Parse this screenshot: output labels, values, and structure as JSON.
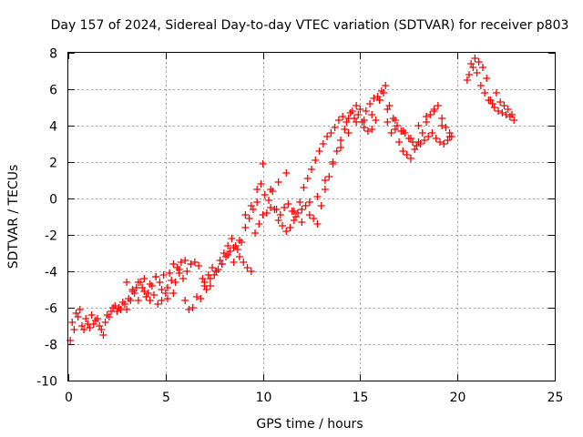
{
  "chart_data": {
    "type": "scatter",
    "title": "Day 157 of 2024, Sidereal Day-to-day VTEC variation (SDTVAR) for receiver p803",
    "xlabel": "GPS time / hours",
    "ylabel": "SDTVAR / TECUs",
    "xlim": [
      0,
      25
    ],
    "ylim": [
      -10,
      8
    ],
    "xticks": [
      "0",
      "5",
      "10",
      "15",
      "20",
      "25"
    ],
    "yticks": [
      "-10",
      "-8",
      "-6",
      "-4",
      "-2",
      "0",
      "2",
      "4",
      "6",
      "8"
    ],
    "grid": true,
    "marker": "+",
    "color": "#ff0000",
    "series": [
      {
        "x": [
          0.1,
          0.3,
          0.5,
          0.7,
          0.9,
          1.1,
          1.3,
          1.5,
          1.7,
          1.9,
          2.1,
          2.3,
          2.5,
          2.7,
          2.9,
          3.1,
          3.3,
          3.5,
          3.7,
          3.9,
          4.1,
          4.3,
          4.5,
          4.7,
          4.9,
          5.1,
          5.3,
          5.5,
          5.7,
          5.9,
          6.1,
          6.3,
          6.5,
          6.7,
          6.9,
          7.1,
          7.3,
          7.5,
          7.7,
          7.9,
          8.1,
          8.3,
          8.5,
          8.7,
          8.9,
          9.1,
          9.3,
          9.5,
          9.7,
          9.9,
          10.1,
          10.3,
          10.5,
          10.7,
          10.9,
          11.1,
          11.3,
          11.5,
          11.7,
          11.9,
          12.1,
          12.3,
          12.5,
          12.7,
          12.9,
          13.1,
          13.3,
          13.5,
          13.7,
          13.9,
          14.1,
          14.3,
          14.5,
          14.7,
          14.9,
          15.1,
          15.3,
          15.5,
          15.7,
          15.9,
          16.1,
          16.3,
          16.5,
          16.7,
          16.9,
          17.1,
          17.3,
          17.5,
          17.7,
          17.9,
          18.1,
          18.3,
          18.5,
          18.7,
          18.9,
          19.1,
          19.3,
          19.5,
          19.7,
          20.5,
          20.7,
          20.9,
          21.1,
          21.3,
          21.5,
          21.7,
          21.9,
          22.1,
          22.3,
          22.5,
          22.7,
          22.9
        ],
        "y": [
          -7.8,
          -7.2,
          -6.5,
          -7.0,
          -6.6,
          -7.1,
          -6.9,
          -6.6,
          -7.2,
          -6.8,
          -6.5,
          -6.0,
          -6.2,
          -6.1,
          -5.8,
          -5.5,
          -5.0,
          -4.9,
          -4.6,
          -4.4,
          -5.2,
          -4.8,
          -4.3,
          -4.6,
          -4.2,
          -4.9,
          -4.5,
          -4.6,
          -4.1,
          -4.4,
          -4.0,
          -3.6,
          -3.5,
          -3.7,
          -4.4,
          -5.0,
          -4.8,
          -4.2,
          -3.9,
          -3.6,
          -3.2,
          -2.9,
          -3.5,
          -2.8,
          -2.4,
          -1.6,
          -1.1,
          -0.6,
          -0.2,
          0.8,
          0.2,
          -0.1,
          0.4,
          -0.6,
          -0.9,
          -0.5,
          -0.3,
          -0.7,
          -1.0,
          -0.2,
          0.6,
          1.1,
          1.6,
          2.1,
          2.6,
          3.0,
          3.4,
          3.6,
          3.9,
          4.3,
          4.5,
          4.2,
          4.7,
          4.4,
          4.6,
          4.2,
          4.8,
          5.2,
          5.5,
          5.6,
          5.9,
          6.2,
          5.1,
          4.4,
          4.0,
          3.7,
          3.6,
          3.3,
          3.1,
          2.9,
          3.0,
          3.2,
          3.4,
          3.6,
          3.3,
          3.1,
          3.0,
          3.2,
          3.4,
          6.5,
          7.4,
          7.7,
          7.5,
          7.2,
          6.6,
          5.4,
          5.0,
          4.8,
          4.7,
          4.6,
          4.5,
          4.3
        ]
      },
      {
        "x": [
          0.2,
          0.4,
          0.6,
          0.8,
          1.0,
          1.2,
          1.4,
          1.6,
          1.8,
          2.0,
          2.2,
          2.4,
          2.6,
          2.8,
          3.0,
          3.2,
          3.4,
          3.6,
          3.8,
          4.0,
          4.2,
          4.4,
          4.6,
          4.8,
          5.0,
          5.2,
          5.4,
          5.6,
          5.8,
          6.0,
          6.2,
          6.4,
          6.6,
          6.8,
          7.0,
          7.2,
          7.4,
          7.6,
          7.8,
          8.0,
          8.2,
          8.4,
          8.6,
          8.8,
          9.0,
          9.2,
          9.4,
          9.6,
          9.8,
          10.0,
          10.2,
          10.4,
          10.6,
          10.8,
          11.0,
          11.2,
          11.4,
          11.6,
          11.8,
          12.0,
          12.2,
          12.4,
          12.6,
          12.8,
          13.0,
          13.2,
          13.4,
          13.6,
          13.8,
          14.0,
          14.2,
          14.4,
          14.6,
          14.8,
          15.0,
          15.2,
          15.4,
          15.6,
          15.8,
          16.0,
          16.2,
          16.4,
          16.6,
          16.8,
          17.0,
          17.2,
          17.4,
          17.6,
          17.8,
          18.0,
          18.2,
          18.4,
          18.6,
          18.8,
          19.0,
          19.2,
          19.4,
          19.6,
          20.6,
          20.8,
          21.0,
          21.2,
          21.4,
          21.6,
          21.8,
          22.0,
          22.2,
          22.4,
          22.6,
          22.8
        ],
        "y": [
          -6.8,
          -6.3,
          -6.1,
          -7.2,
          -6.9,
          -6.4,
          -6.7,
          -7.0,
          -7.5,
          -6.4,
          -6.2,
          -5.9,
          -6.0,
          -5.7,
          -6.1,
          -5.6,
          -5.2,
          -4.6,
          -4.9,
          -5.4,
          -5.6,
          -5.3,
          -5.8,
          -5.6,
          -5.2,
          -4.1,
          -3.6,
          -3.8,
          -3.5,
          -5.6,
          -6.1,
          -6.0,
          -5.4,
          -5.5,
          -4.6,
          -4.2,
          -3.8,
          -4.0,
          -3.4,
          -3.0,
          -2.6,
          -2.2,
          -2.6,
          -3.2,
          -3.5,
          -3.8,
          -4.0,
          -1.9,
          -1.4,
          -0.9,
          -0.8,
          -0.5,
          -0.6,
          -1.2,
          -1.5,
          -1.8,
          -1.6,
          -1.2,
          -0.8,
          -0.6,
          -0.4,
          -0.2,
          -1.1,
          -1.4,
          -0.4,
          0.5,
          1.2,
          2.0,
          2.6,
          3.2,
          3.8,
          4.4,
          4.8,
          5.1,
          4.9,
          4.3,
          3.7,
          3.8,
          4.3,
          5.4,
          5.8,
          4.2,
          3.6,
          3.8,
          3.1,
          2.6,
          2.4,
          2.2,
          2.7,
          3.1,
          3.6,
          4.2,
          4.6,
          4.9,
          5.1,
          4.4,
          3.9,
          3.4,
          6.8,
          7.2,
          6.9,
          6.2,
          5.8,
          5.4,
          5.2,
          5.8,
          5.3,
          5.1,
          4.9,
          4.6
        ]
      },
      {
        "x": [
          3.0,
          3.3,
          3.6,
          3.9,
          4.2,
          4.5,
          4.8,
          5.1,
          5.4,
          5.7,
          6.0,
          6.3,
          7.0,
          7.3,
          7.6,
          7.9,
          8.2,
          8.5,
          8.8,
          9.1,
          9.4,
          9.7,
          10.0,
          10.4,
          10.8,
          11.2,
          11.6,
          12.0,
          12.4,
          12.8,
          13.2,
          13.6,
          14.0,
          14.4,
          14.8,
          15.2,
          15.6,
          16.0,
          16.4,
          16.8,
          17.2,
          17.6,
          18.0,
          18.4,
          18.8,
          19.2,
          19.6
        ],
        "y": [
          -4.6,
          -5.1,
          -5.6,
          -5.1,
          -4.7,
          -4.3,
          -5.0,
          -5.5,
          -5.2,
          -3.9,
          -3.4,
          -3.6,
          -4.8,
          -4.4,
          -4.0,
          -3.6,
          -3.1,
          -2.7,
          -2.3,
          -0.9,
          -0.4,
          0.5,
          1.9,
          0.5,
          0.9,
          1.4,
          -0.7,
          -1.3,
          -0.9,
          0.1,
          1.0,
          1.9,
          2.8,
          3.6,
          4.2,
          3.9,
          4.6,
          5.4,
          4.9,
          4.3,
          3.7,
          3.3,
          4.0,
          4.5,
          4.8,
          4.0,
          3.6
        ]
      }
    ]
  }
}
